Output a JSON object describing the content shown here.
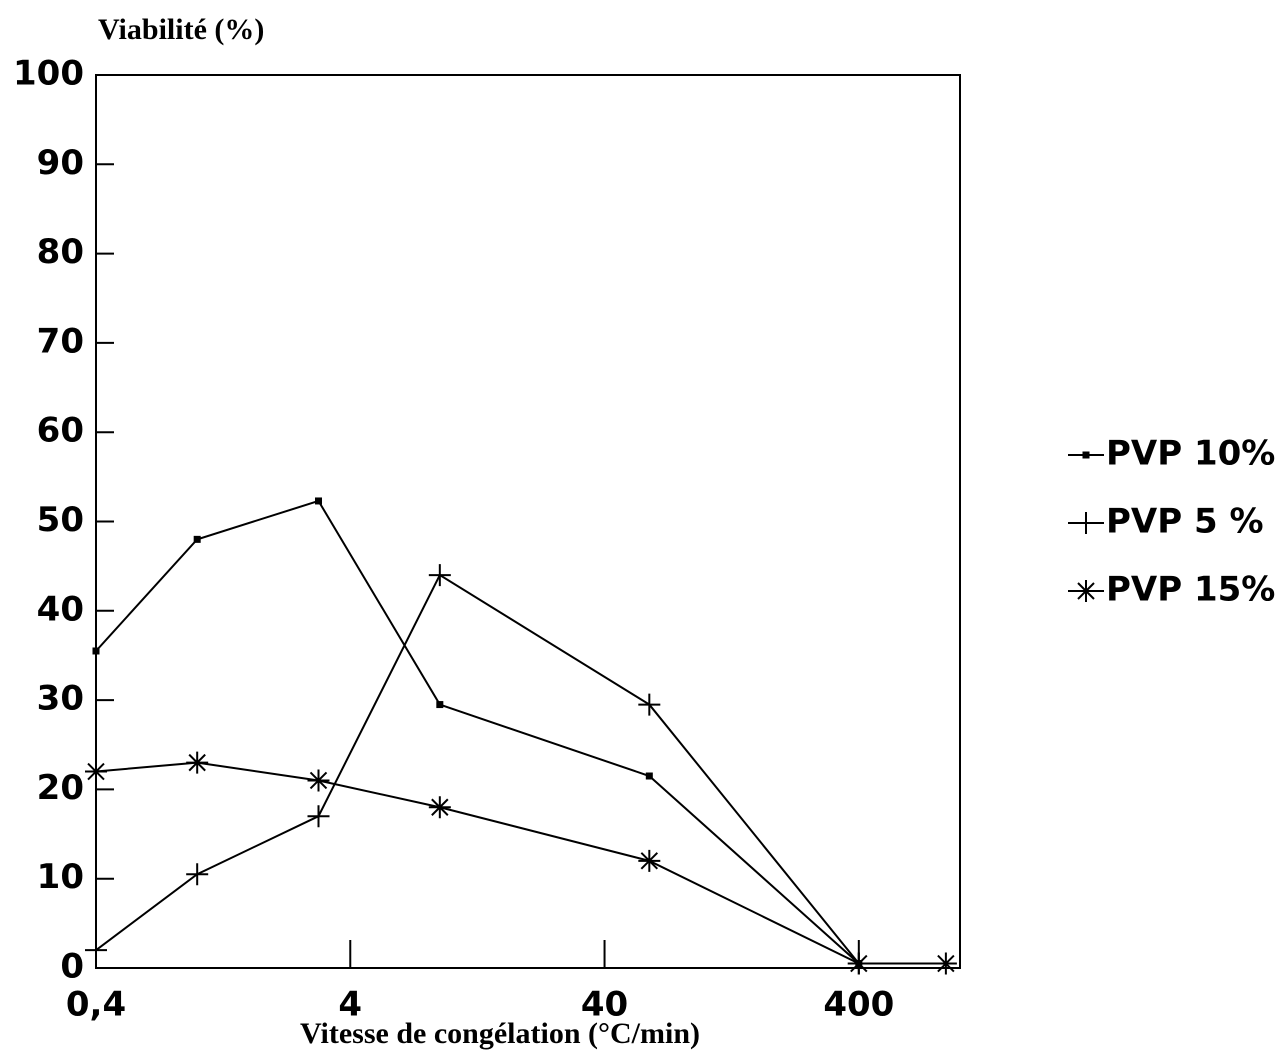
{
  "chart_data": {
    "type": "line",
    "title": "Viabilité (%)",
    "x_label": "Vitesse de congélation (°C/min)",
    "x": [
      0.4,
      1,
      3,
      9,
      60,
      400,
      880
    ],
    "series": [
      {
        "name": "PVP 10%",
        "color": "#000000",
        "marker": "square",
        "values": [
          35.5,
          48,
          52.3,
          29.5,
          21.5,
          0.5,
          null
        ]
      },
      {
        "name": "PVP 5 %",
        "color": "#000000",
        "marker": "plus",
        "values": [
          2,
          10.5,
          17,
          44,
          29.5,
          0.5,
          null
        ]
      },
      {
        "name": "PVP 15%",
        "color": "#000000",
        "marker": "asterisk",
        "values": [
          22,
          23,
          21,
          18,
          12,
          0.5,
          0.5
        ]
      }
    ],
    "xscale": "log",
    "xlim": [
      0.4,
      1000
    ],
    "xticks": [
      {
        "value": 0.4,
        "label": "0,4"
      },
      4,
      40,
      400
    ],
    "ylim": [
      0,
      100
    ],
    "yticks": [
      0,
      10,
      20,
      30,
      40,
      50,
      60,
      70,
      80,
      90,
      100
    ],
    "legend": "right"
  }
}
